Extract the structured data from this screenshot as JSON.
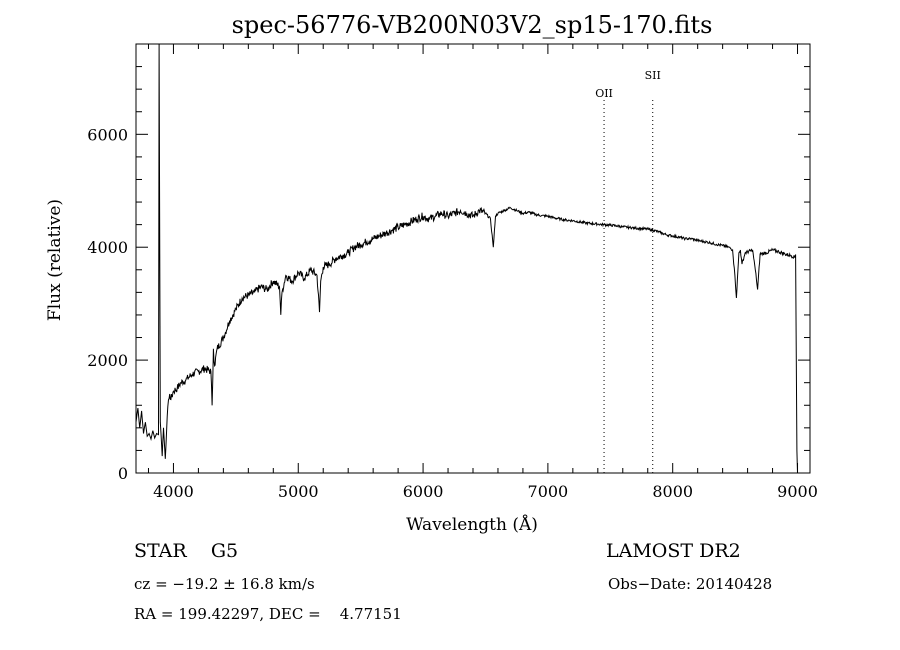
{
  "chart_data": {
    "type": "line",
    "title": "spec-56776-VB200N03V2_sp15-170.fits",
    "xlabel": "Wavelength (Å)",
    "ylabel": "Flux (relative)",
    "xlim": [
      3700,
      9100
    ],
    "ylim": [
      0,
      7600
    ],
    "xticks": [
      4000,
      5000,
      6000,
      7000,
      8000,
      9000
    ],
    "yticks": [
      0,
      2000,
      4000,
      6000
    ],
    "grid": false,
    "lines": [
      {
        "label": "OII",
        "x": 7450
      },
      {
        "label": "SII",
        "x": 7840
      }
    ],
    "series": [
      {
        "x": [
          3700,
          3715,
          3730,
          3745,
          3760,
          3775,
          3790,
          3805,
          3820,
          3835,
          3850,
          3865,
          3880,
          3885,
          3888,
          3895,
          3900,
          3910,
          3920,
          3935,
          3950,
          3960,
          3970,
          3980,
          4000,
          4030,
          4060,
          4100,
          4150,
          4200,
          4250,
          4300,
          4310,
          4320,
          4330,
          4350,
          4400,
          4450,
          4500,
          4550,
          4600,
          4650,
          4700,
          4750,
          4800,
          4850,
          4860,
          4870,
          4900,
          4950,
          5000,
          5050,
          5100,
          5150,
          5170,
          5180,
          5200,
          5250,
          5300,
          5350,
          5400,
          5450,
          5500,
          5550,
          5600,
          5650,
          5700,
          5750,
          5800,
          5850,
          5900,
          5950,
          6000,
          6050,
          6100,
          6150,
          6200,
          6250,
          6300,
          6350,
          6400,
          6450,
          6500,
          6540,
          6563,
          6580,
          6600,
          6650,
          6700,
          6750,
          6800,
          6850,
          6900,
          6950,
          7000,
          7050,
          7100,
          7150,
          7200,
          7250,
          7300,
          7350,
          7400,
          7450,
          7500,
          7550,
          7600,
          7650,
          7700,
          7750,
          7800,
          7850,
          7900,
          7950,
          8000,
          8050,
          8100,
          8150,
          8200,
          8250,
          8300,
          8350,
          8400,
          8450,
          8480,
          8498,
          8510,
          8530,
          8542,
          8555,
          8580,
          8640,
          8662,
          8680,
          8700,
          8750,
          8800,
          8850,
          8900,
          8950,
          8980,
          8985,
          8990,
          8995,
          9000
        ],
        "values": [
          900,
          1150,
          800,
          1100,
          700,
          900,
          650,
          700,
          600,
          750,
          620,
          700,
          680,
          7600,
          5300,
          900,
          700,
          300,
          800,
          250,
          1000,
          1300,
          1400,
          1300,
          1450,
          1500,
          1600,
          1650,
          1750,
          1800,
          1850,
          1800,
          1200,
          2200,
          1900,
          2200,
          2400,
          2700,
          2900,
          3100,
          3150,
          3200,
          3300,
          3250,
          3400,
          3300,
          2800,
          3200,
          3500,
          3400,
          3550,
          3450,
          3600,
          3500,
          2850,
          3400,
          3650,
          3700,
          3800,
          3850,
          3900,
          4000,
          4050,
          4100,
          4150,
          4200,
          4250,
          4300,
          4350,
          4400,
          4450,
          4500,
          4550,
          4500,
          4550,
          4600,
          4550,
          4600,
          4650,
          4600,
          4550,
          4650,
          4600,
          4500,
          4000,
          4550,
          4600,
          4650,
          4700,
          4650,
          4600,
          4620,
          4580,
          4560,
          4550,
          4520,
          4500,
          4480,
          4470,
          4450,
          4430,
          4420,
          4410,
          4400,
          4390,
          4380,
          4360,
          4350,
          4340,
          4330,
          4320,
          4300,
          4260,
          4220,
          4200,
          4180,
          4150,
          4150,
          4120,
          4100,
          4080,
          4050,
          4030,
          4000,
          3950,
          3500,
          3100,
          3900,
          3950,
          3700,
          3900,
          3950,
          3600,
          3250,
          3880,
          3900,
          3950,
          3920,
          3880,
          3850,
          3820,
          3870,
          2000,
          400,
          0
        ]
      }
    ]
  },
  "footer": {
    "class": "STAR    G5",
    "survey": "LAMOST DR2",
    "cz": "cz = −19.2 ± 16.8 km/s",
    "obs_date": "Obs−Date: 20140428",
    "radec": "RA = 199.42297, DEC =    4.77151"
  }
}
